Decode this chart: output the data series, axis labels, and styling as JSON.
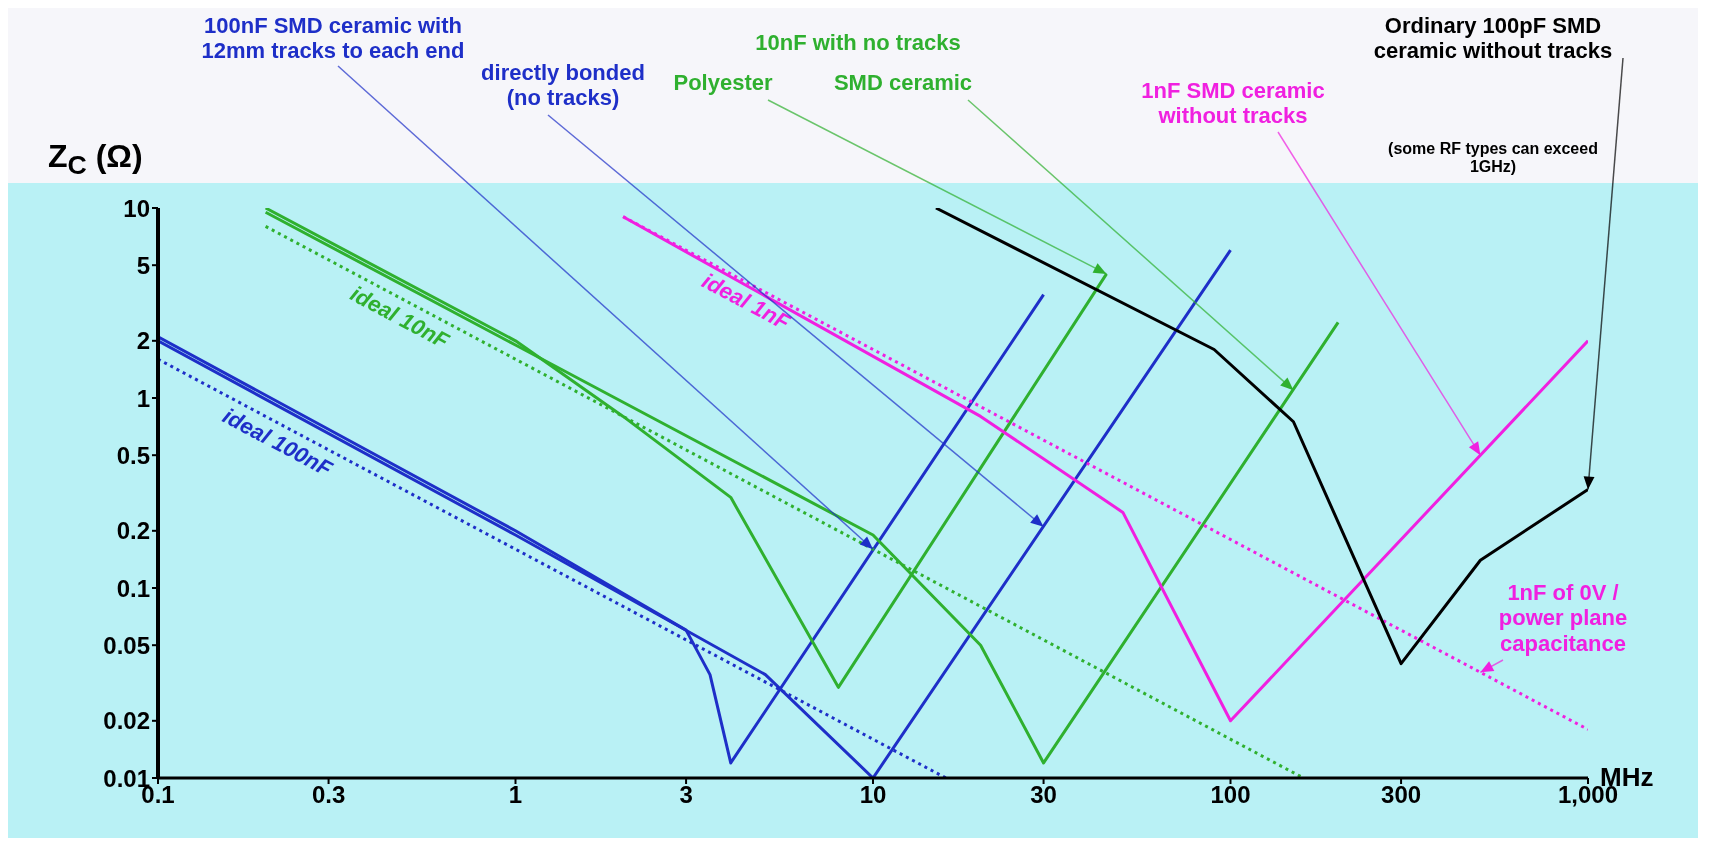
{
  "chart_data": {
    "type": "line",
    "xlabel": "MHz",
    "ylabel": "Z$_{C}$ (Ω)",
    "log": "xy",
    "marker": "none",
    "xlim": [
      0.1,
      1000
    ],
    "xticks": [
      0.1,
      0.3,
      1,
      3,
      10,
      30,
      100,
      300,
      {
        "value": 1000,
        "label": "1,000"
      }
    ],
    "ylim": [
      0.01,
      10
    ],
    "yticks": [
      0.01,
      0.02,
      0.05,
      0.1,
      0.2,
      0.5,
      1,
      2,
      5,
      10
    ],
    "series": [
      {
        "color": "#1e2fc8",
        "x": [
          0.1,
          1,
          3,
          3.5,
          4,
          30
        ],
        "values": [
          2.1,
          0.2,
          0.06,
          0.035,
          0.012,
          3.5
        ]
      },
      {
        "color": "#1e2fc8",
        "x": [
          0.1,
          1,
          5,
          10,
          100
        ],
        "values": [
          2,
          0.19,
          0.035,
          0.01,
          6
        ]
      },
      {
        "name": "ideal 100nF",
        "color": "#1e2fc8",
        "line_style": "dotted",
        "x": [
          0.1,
          16
        ],
        "values": [
          1.6,
          0.01
        ]
      },
      {
        "color": "#2fb02f",
        "x": [
          0.2,
          1,
          2,
          4,
          8,
          45
        ],
        "values": [
          10,
          2,
          0.8,
          0.3,
          0.03,
          4.5
        ]
      },
      {
        "color": "#2fb02f",
        "x": [
          0.2,
          1,
          10,
          20,
          30,
          200
        ],
        "values": [
          9.5,
          1.9,
          0.19,
          0.05,
          0.012,
          2.5
        ]
      },
      {
        "name": "ideal 10nF",
        "color": "#2fb02f",
        "line_style": "dotted",
        "x": [
          0.2,
          160
        ],
        "values": [
          8,
          0.01
        ]
      },
      {
        "color": "#f020e0",
        "x": [
          2,
          20,
          50,
          100,
          1000
        ],
        "values": [
          9,
          0.8,
          0.25,
          0.02,
          2
        ]
      },
      {
        "name": "ideal 1nF",
        "color": "#f020e0",
        "line_style": "dotted",
        "x": [
          2,
          1000
        ],
        "values": [
          9,
          0.018
        ]
      },
      {
        "color": "#000000",
        "x": [
          15,
          90,
          150,
          300,
          500,
          1000
        ],
        "values": [
          10,
          1.8,
          0.75,
          0.04,
          0.14,
          0.33
        ]
      }
    ],
    "annotations": [
      {
        "text": "100nF SMD ceramic with 12mm tracks to each end",
        "x": 10,
        "y": 0.16
      },
      {
        "text": "directly bonded (no tracks)",
        "x": 30,
        "y": 0.21
      },
      "10nF with no tracks",
      {
        "text": "Polyester",
        "x": 45,
        "y": 4.5
      },
      {
        "text": "SMD ceramic",
        "x": 150,
        "y": 1.1
      },
      {
        "text": "1nF SMD ceramic without tracks",
        "x": 500,
        "y": 0.5
      },
      {
        "text": "Ordinary 100pF SMD ceramic without tracks",
        "x": 1000,
        "y": 0.33
      },
      "(some RF types can exceed 1GHz)",
      {
        "text": "1nF of 0V / power plane capacitance",
        "x": 500,
        "y": 0.036
      }
    ]
  }
}
